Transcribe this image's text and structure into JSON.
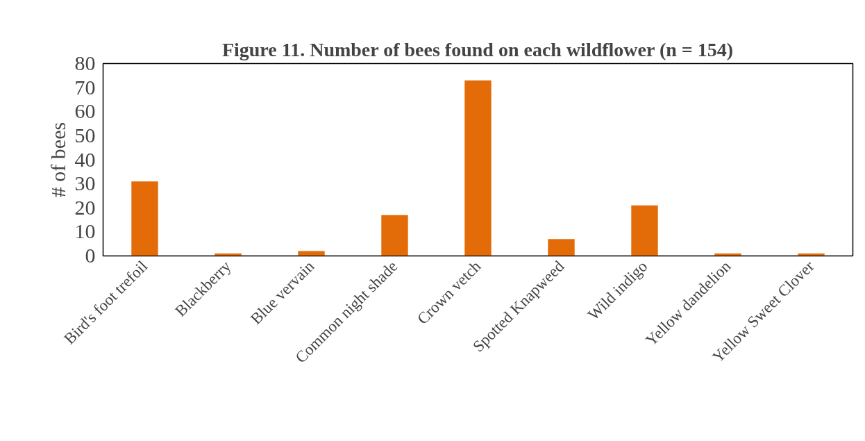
{
  "chart_data": {
    "type": "bar",
    "title": "Figure 11. Number of bees found on each wildflower (n = 154)",
    "ylabel": "# of bees",
    "categories": [
      "Bird's foot trefoil",
      "Blackberry",
      "Blue vervain",
      "Common night shade",
      "Crown vetch",
      "Spotted Knapweed",
      "Wild indigo",
      "Yellow dandelion",
      "Yellow Sweet Clover"
    ],
    "values": [
      31,
      1,
      2,
      17,
      73,
      7,
      21,
      1,
      1
    ],
    "color": "#e36c09",
    "ylim": [
      0,
      80
    ],
    "yticks": [
      0,
      10,
      20,
      30,
      40,
      50,
      60,
      70,
      80
    ],
    "grid": false
  }
}
